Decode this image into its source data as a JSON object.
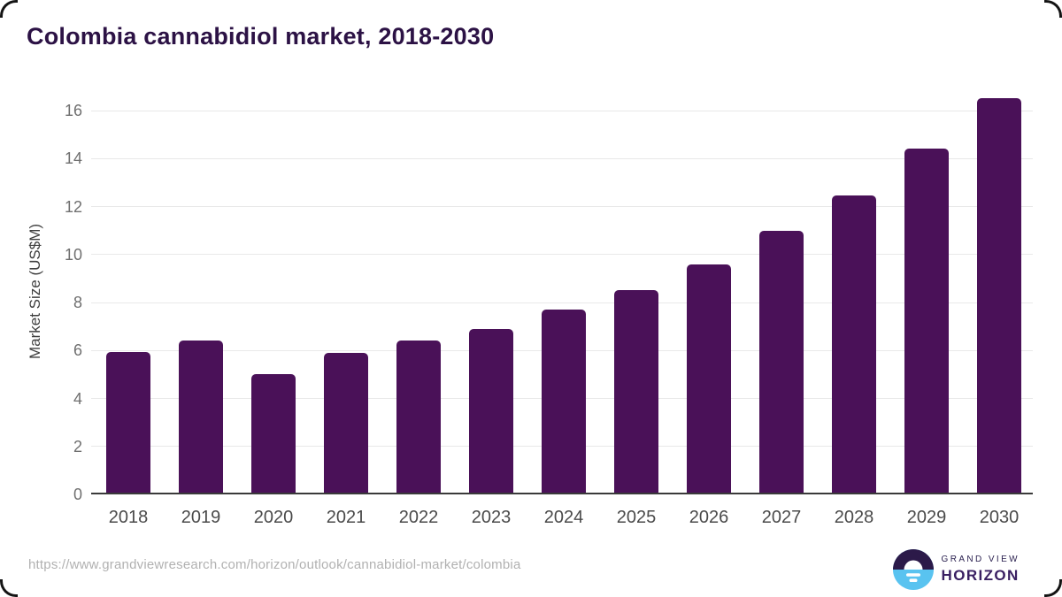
{
  "chart_data": {
    "type": "bar",
    "title": "Colombia cannabidiol market, 2018-2030",
    "categories": [
      "2018",
      "2019",
      "2020",
      "2021",
      "2022",
      "2023",
      "2024",
      "2025",
      "2026",
      "2027",
      "2028",
      "2029",
      "2030"
    ],
    "values": [
      5.95,
      6.4,
      5.0,
      5.9,
      6.4,
      6.9,
      7.7,
      8.5,
      9.6,
      11.0,
      12.45,
      14.4,
      16.5
    ],
    "xlabel": "",
    "ylabel": "Market Size (US$M)",
    "ylim": [
      0,
      16
    ],
    "yticks": [
      0,
      2,
      4,
      6,
      8,
      10,
      12,
      14,
      16
    ],
    "grid": true,
    "legend": false,
    "bar_color": "#4a1158"
  },
  "colors": {
    "title": "#2c1245",
    "bar": "#4a1158",
    "gridline": "#e9e9e9",
    "axis_line": "#3a3a3a",
    "tick_label": "#6f6f6f",
    "url_text": "#b1b1b1",
    "logo_dark_purple": "#2c1a49",
    "logo_light_blue": "#59c3f0"
  },
  "footer": {
    "source_url": "https://www.grandviewresearch.com/horizon/outlook/cannabidiol-market/colombia",
    "logo_line1": "GRAND VIEW",
    "logo_line2": "HORIZON"
  }
}
